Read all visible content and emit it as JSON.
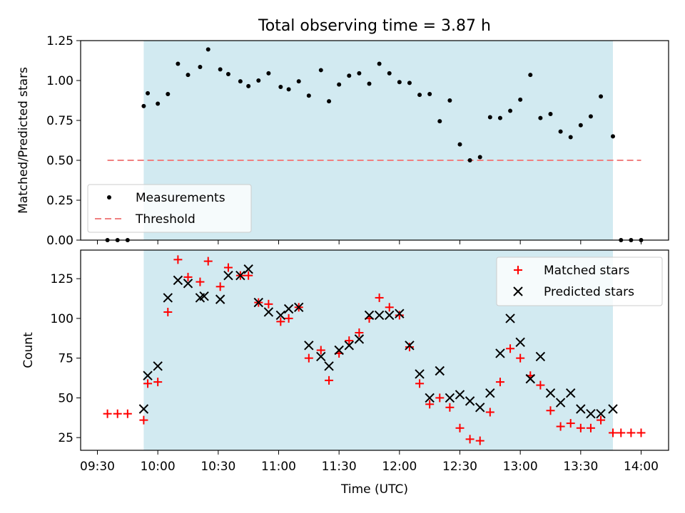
{
  "title": "Total observing time = 3.87 h",
  "chart_data": [
    {
      "type": "scatter",
      "ylabel": "Matched/Predicted stars",
      "ylim": [
        0,
        1.25
      ],
      "yticks": [
        "0.00",
        "0.25",
        "0.50",
        "0.75",
        "1.00",
        "1.25"
      ],
      "shaded_interval": [
        "09:53",
        "13:46"
      ],
      "legend": {
        "placement": "lower-left",
        "entries": [
          "Measurements",
          "Threshold"
        ]
      },
      "threshold": {
        "name": "Threshold",
        "value": 0.5,
        "x_range": [
          "09:35",
          "14:00"
        ],
        "color": "#f08080"
      },
      "series": [
        {
          "name": "Measurements",
          "color": "#000000",
          "points": [
            [
              "09:35",
              0
            ],
            [
              "09:40",
              0
            ],
            [
              "09:45",
              0
            ],
            [
              "09:53",
              0.84
            ],
            [
              "09:55",
              0.92
            ],
            [
              "10:00",
              0.855
            ],
            [
              "10:05",
              0.915
            ],
            [
              "10:10",
              1.105
            ],
            [
              "10:15",
              1.035
            ],
            [
              "10:21",
              1.085
            ],
            [
              "10:25",
              1.195
            ],
            [
              "10:31",
              1.07
            ],
            [
              "10:35",
              1.04
            ],
            [
              "10:41",
              0.995
            ],
            [
              "10:45",
              0.965
            ],
            [
              "10:50",
              1.0
            ],
            [
              "10:55",
              1.045
            ],
            [
              "11:01",
              0.96
            ],
            [
              "11:05",
              0.945
            ],
            [
              "11:10",
              0.995
            ],
            [
              "11:15",
              0.905
            ],
            [
              "11:21",
              1.065
            ],
            [
              "11:25",
              0.87
            ],
            [
              "11:30",
              0.975
            ],
            [
              "11:35",
              1.03
            ],
            [
              "11:40",
              1.045
            ],
            [
              "11:45",
              0.98
            ],
            [
              "11:50",
              1.105
            ],
            [
              "11:55",
              1.045
            ],
            [
              "12:00",
              0.99
            ],
            [
              "12:05",
              0.985
            ],
            [
              "12:10",
              0.91
            ],
            [
              "12:15",
              0.915
            ],
            [
              "12:20",
              0.745
            ],
            [
              "12:25",
              0.875
            ],
            [
              "12:30",
              0.6
            ],
            [
              "12:35",
              0.5
            ],
            [
              "12:40",
              0.52
            ],
            [
              "12:45",
              0.77
            ],
            [
              "12:50",
              0.765
            ],
            [
              "12:55",
              0.81
            ],
            [
              "13:00",
              0.88
            ],
            [
              "13:05",
              1.035
            ],
            [
              "13:10",
              0.765
            ],
            [
              "13:15",
              0.79
            ],
            [
              "13:20",
              0.68
            ],
            [
              "13:25",
              0.645
            ],
            [
              "13:30",
              0.72
            ],
            [
              "13:35",
              0.775
            ],
            [
              "13:40",
              0.9
            ],
            [
              "13:46",
              0.65
            ],
            [
              "13:50",
              0
            ],
            [
              "13:55",
              0
            ],
            [
              "14:00",
              0
            ]
          ]
        }
      ]
    },
    {
      "type": "scatter",
      "xlabel": "Time (UTC)",
      "ylabel": "Count",
      "ylim": [
        17,
        143
      ],
      "yticks": [
        "25",
        "50",
        "75",
        "100",
        "125"
      ],
      "xticks": [
        "09:30",
        "10:00",
        "10:30",
        "11:00",
        "11:30",
        "12:00",
        "12:30",
        "13:00",
        "13:30",
        "14:00"
      ],
      "shaded_interval": [
        "09:53",
        "13:46"
      ],
      "legend": {
        "placement": "upper-right",
        "entries": [
          "Matched stars",
          "Predicted stars"
        ]
      },
      "series": [
        {
          "name": "Matched stars",
          "marker": "+",
          "color": "#ff0000",
          "points": [
            [
              "09:35",
              40
            ],
            [
              "09:40",
              40
            ],
            [
              "09:45",
              40
            ],
            [
              "09:53",
              36
            ],
            [
              "09:55",
              59
            ],
            [
              "10:00",
              60
            ],
            [
              "10:05",
              104
            ],
            [
              "10:10",
              137
            ],
            [
              "10:15",
              126
            ],
            [
              "10:21",
              123
            ],
            [
              "10:25",
              136
            ],
            [
              "10:31",
              120
            ],
            [
              "10:35",
              132
            ],
            [
              "10:41",
              127
            ],
            [
              "10:45",
              127
            ],
            [
              "10:50",
              110
            ],
            [
              "10:55",
              109
            ],
            [
              "11:01",
              98
            ],
            [
              "11:05",
              100
            ],
            [
              "11:10",
              107
            ],
            [
              "11:15",
              75
            ],
            [
              "11:21",
              80
            ],
            [
              "11:25",
              61
            ],
            [
              "11:30",
              78
            ],
            [
              "11:35",
              86
            ],
            [
              "11:40",
              91
            ],
            [
              "11:45",
              100
            ],
            [
              "11:50",
              113
            ],
            [
              "11:55",
              107
            ],
            [
              "12:00",
              102
            ],
            [
              "12:05",
              82
            ],
            [
              "12:10",
              59
            ],
            [
              "12:15",
              46
            ],
            [
              "12:20",
              50
            ],
            [
              "12:25",
              44
            ],
            [
              "12:30",
              31
            ],
            [
              "12:35",
              24
            ],
            [
              "12:40",
              23
            ],
            [
              "12:45",
              41
            ],
            [
              "12:50",
              60
            ],
            [
              "12:55",
              81
            ],
            [
              "13:00",
              75
            ],
            [
              "13:05",
              64
            ],
            [
              "13:10",
              58
            ],
            [
              "13:15",
              42
            ],
            [
              "13:20",
              32
            ],
            [
              "13:25",
              34
            ],
            [
              "13:30",
              31
            ],
            [
              "13:35",
              31
            ],
            [
              "13:40",
              36
            ],
            [
              "13:46",
              28
            ],
            [
              "13:50",
              28
            ],
            [
              "13:55",
              28
            ],
            [
              "14:00",
              28
            ]
          ]
        },
        {
          "name": "Predicted stars",
          "marker": "x",
          "color": "#000000",
          "points": [
            [
              "09:53",
              43
            ],
            [
              "09:55",
              64
            ],
            [
              "10:00",
              70
            ],
            [
              "10:05",
              113
            ],
            [
              "10:10",
              124
            ],
            [
              "10:15",
              122
            ],
            [
              "10:21",
              113
            ],
            [
              "10:23",
              114
            ],
            [
              "10:31",
              112
            ],
            [
              "10:35",
              127
            ],
            [
              "10:41",
              127
            ],
            [
              "10:45",
              131
            ],
            [
              "10:50",
              110
            ],
            [
              "10:55",
              104
            ],
            [
              "11:01",
              102
            ],
            [
              "11:05",
              106
            ],
            [
              "11:10",
              107
            ],
            [
              "11:15",
              83
            ],
            [
              "11:21",
              76
            ],
            [
              "11:25",
              70
            ],
            [
              "11:30",
              80
            ],
            [
              "11:35",
              83
            ],
            [
              "11:40",
              87
            ],
            [
              "11:45",
              102
            ],
            [
              "11:50",
              102
            ],
            [
              "11:55",
              102
            ],
            [
              "12:00",
              103
            ],
            [
              "12:05",
              83
            ],
            [
              "12:10",
              65
            ],
            [
              "12:15",
              50
            ],
            [
              "12:20",
              67
            ],
            [
              "12:25",
              50
            ],
            [
              "12:30",
              52
            ],
            [
              "12:35",
              48
            ],
            [
              "12:40",
              44
            ],
            [
              "12:45",
              53
            ],
            [
              "12:50",
              78
            ],
            [
              "12:55",
              100
            ],
            [
              "13:00",
              85
            ],
            [
              "13:05",
              62
            ],
            [
              "13:10",
              76
            ],
            [
              "13:15",
              53
            ],
            [
              "13:20",
              47
            ],
            [
              "13:25",
              53
            ],
            [
              "13:30",
              43
            ],
            [
              "13:35",
              40
            ],
            [
              "13:40",
              40
            ],
            [
              "13:46",
              43
            ]
          ]
        }
      ]
    }
  ]
}
